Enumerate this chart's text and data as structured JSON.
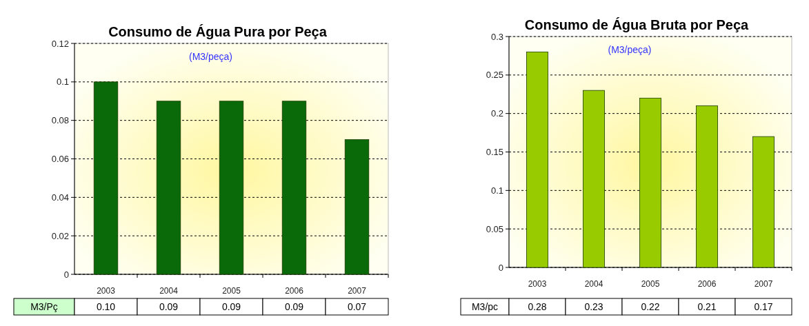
{
  "chart_data": [
    {
      "type": "bar",
      "title": "Consumo de Água Pura por Peça",
      "subtitle": "(M3/peça)",
      "categories": [
        "2003",
        "2004",
        "2005",
        "2006",
        "2007"
      ],
      "series": [
        {
          "name": "M3/Pç",
          "color": "#0a6a0a",
          "values": [
            0.1,
            0.09,
            0.09,
            0.09,
            0.07
          ],
          "value_labels": [
            "0.10",
            "0.09",
            "0.09",
            "0.09",
            "0.07"
          ]
        }
      ],
      "ylim": [
        0,
        0.12
      ],
      "yticks": [
        0,
        0.02,
        0.04,
        0.06,
        0.08,
        0.1,
        0.12
      ],
      "grid": "y"
    },
    {
      "type": "bar",
      "title": "Consumo de Água Bruta  por Peça",
      "subtitle": "(M3/peça)",
      "categories": [
        "2003",
        "2004",
        "2005",
        "2006",
        "2007"
      ],
      "series": [
        {
          "name": "M3/pc",
          "color": "#99cc00",
          "values": [
            0.28,
            0.23,
            0.22,
            0.21,
            0.17
          ],
          "value_labels": [
            "0.28",
            "0.23",
            "0.22",
            "0.21",
            "0.17"
          ]
        }
      ],
      "ylim": [
        0,
        0.3
      ],
      "yticks": [
        0,
        0.05,
        0.1,
        0.15,
        0.2,
        0.25,
        0.3
      ],
      "grid": "y"
    }
  ]
}
